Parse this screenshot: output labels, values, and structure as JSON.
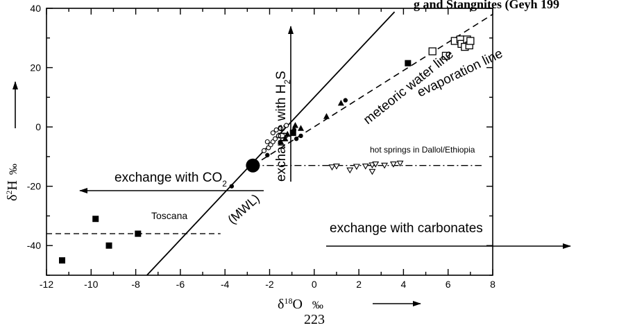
{
  "chart_data": {
    "type": "scatter",
    "title": "g       and Stangnites (Geyh 199",
    "xlabel": {
      "prefix": "δ",
      "sup": "18",
      "main": "O",
      "unit": "‰"
    },
    "ylabel": {
      "prefix": "δ",
      "sup": "2",
      "main": "H",
      "unit": "‰"
    },
    "xlim": [
      -12,
      8
    ],
    "ylim": [
      -50,
      40
    ],
    "x_ticks": [
      -12,
      -10,
      -8,
      -6,
      -4,
      -2,
      0,
      2,
      4,
      6,
      8
    ],
    "x_tick_labels": [
      "-12",
      "-10",
      "-8",
      "-6",
      "-4",
      "-2",
      "0",
      "2",
      "4",
      "6",
      "8"
    ],
    "y_ticks": [
      -40,
      -20,
      0,
      20,
      40
    ],
    "y_tick_labels": [
      "-40",
      "-20",
      "0",
      "20",
      "40"
    ],
    "grid": false,
    "page_number": "223",
    "lines": [
      {
        "name": "meteoric water line",
        "style": "solid",
        "x": [
          -7.5,
          3.6
        ],
        "y": [
          -50,
          38.8
        ]
      },
      {
        "name": "evaporation line",
        "style": "dashed",
        "x": [
          -2.75,
          8
        ],
        "y": [
          -13,
          38
        ]
      },
      {
        "name": "Toscana",
        "style": "dashed",
        "x": [
          -12,
          -4.2
        ],
        "y": [
          -36,
          -36
        ]
      },
      {
        "name": "hot springs in Dallol/Ethiopia",
        "style": "dashdot",
        "x": [
          -2.75,
          7.5
        ],
        "y": [
          -13,
          -13
        ]
      }
    ],
    "origin_point": {
      "x": -2.75,
      "y": -13
    },
    "series": [
      {
        "marker": "filled-square",
        "points": [
          [
            -11.3,
            -45
          ],
          [
            -9.8,
            -31
          ],
          [
            -9.2,
            -40
          ],
          [
            -7.9,
            -36
          ],
          [
            -0.95,
            -2
          ],
          [
            4.2,
            21.5
          ]
        ]
      },
      {
        "marker": "filled-circle",
        "points": [
          [
            -3.7,
            -20
          ],
          [
            -2.1,
            -9.5
          ],
          [
            -0.8,
            -4
          ],
          [
            -0.6,
            -3
          ],
          [
            -0.9,
            -1
          ],
          [
            1.4,
            9
          ]
        ]
      },
      {
        "marker": "filled-triangle",
        "points": [
          [
            -1.5,
            -5
          ],
          [
            -1.3,
            -4
          ],
          [
            -1.2,
            -2.5
          ],
          [
            -0.85,
            0.5
          ],
          [
            -0.6,
            -0.5
          ],
          [
            0.55,
            3.5
          ],
          [
            1.2,
            8
          ]
        ]
      },
      {
        "marker": "open-circle",
        "points": [
          [
            -2.25,
            -8
          ],
          [
            -2.05,
            -7
          ],
          [
            -1.95,
            -6
          ],
          [
            -1.85,
            -5
          ],
          [
            -1.75,
            -4
          ],
          [
            -1.6,
            -3
          ],
          [
            -1.7,
            -1
          ],
          [
            -1.85,
            -2
          ],
          [
            -2.1,
            -5
          ],
          [
            -1.5,
            -0.5
          ],
          [
            -1.25,
            0.5
          ]
        ]
      },
      {
        "marker": "open-square",
        "points": [
          [
            5.3,
            25.5
          ],
          [
            5.9,
            24
          ],
          [
            6.3,
            29
          ],
          [
            6.55,
            29.5
          ],
          [
            6.6,
            28
          ],
          [
            6.75,
            27
          ],
          [
            6.85,
            29.5
          ],
          [
            6.95,
            27.5
          ],
          [
            7.0,
            29
          ]
        ]
      },
      {
        "marker": "open-triangle-down",
        "points": [
          [
            0.8,
            -13.5
          ],
          [
            1.0,
            -13.2
          ],
          [
            1.6,
            -14.5
          ],
          [
            1.9,
            -13.3
          ],
          [
            2.3,
            -13.2
          ],
          [
            2.6,
            -12.8
          ],
          [
            2.6,
            -15
          ],
          [
            2.75,
            -12.5
          ],
          [
            3.15,
            -12.9
          ],
          [
            3.55,
            -12.5
          ],
          [
            3.85,
            -12.2
          ]
        ]
      }
    ],
    "annotations": {
      "meteoric_water_line": "meteoric water line",
      "evaporation_line": "evaporation line",
      "mwl": "(MWL)",
      "h2s_prefix": "exchange with H",
      "h2s_sub": "2",
      "h2s_suffix": "S",
      "co2_prefix": "exchange with CO",
      "co2_sub": "2",
      "carbonates": "exchange with carbonates",
      "dallol": "hot springs in Dallol/Ethiopia",
      "toscana": "Toscana"
    }
  }
}
